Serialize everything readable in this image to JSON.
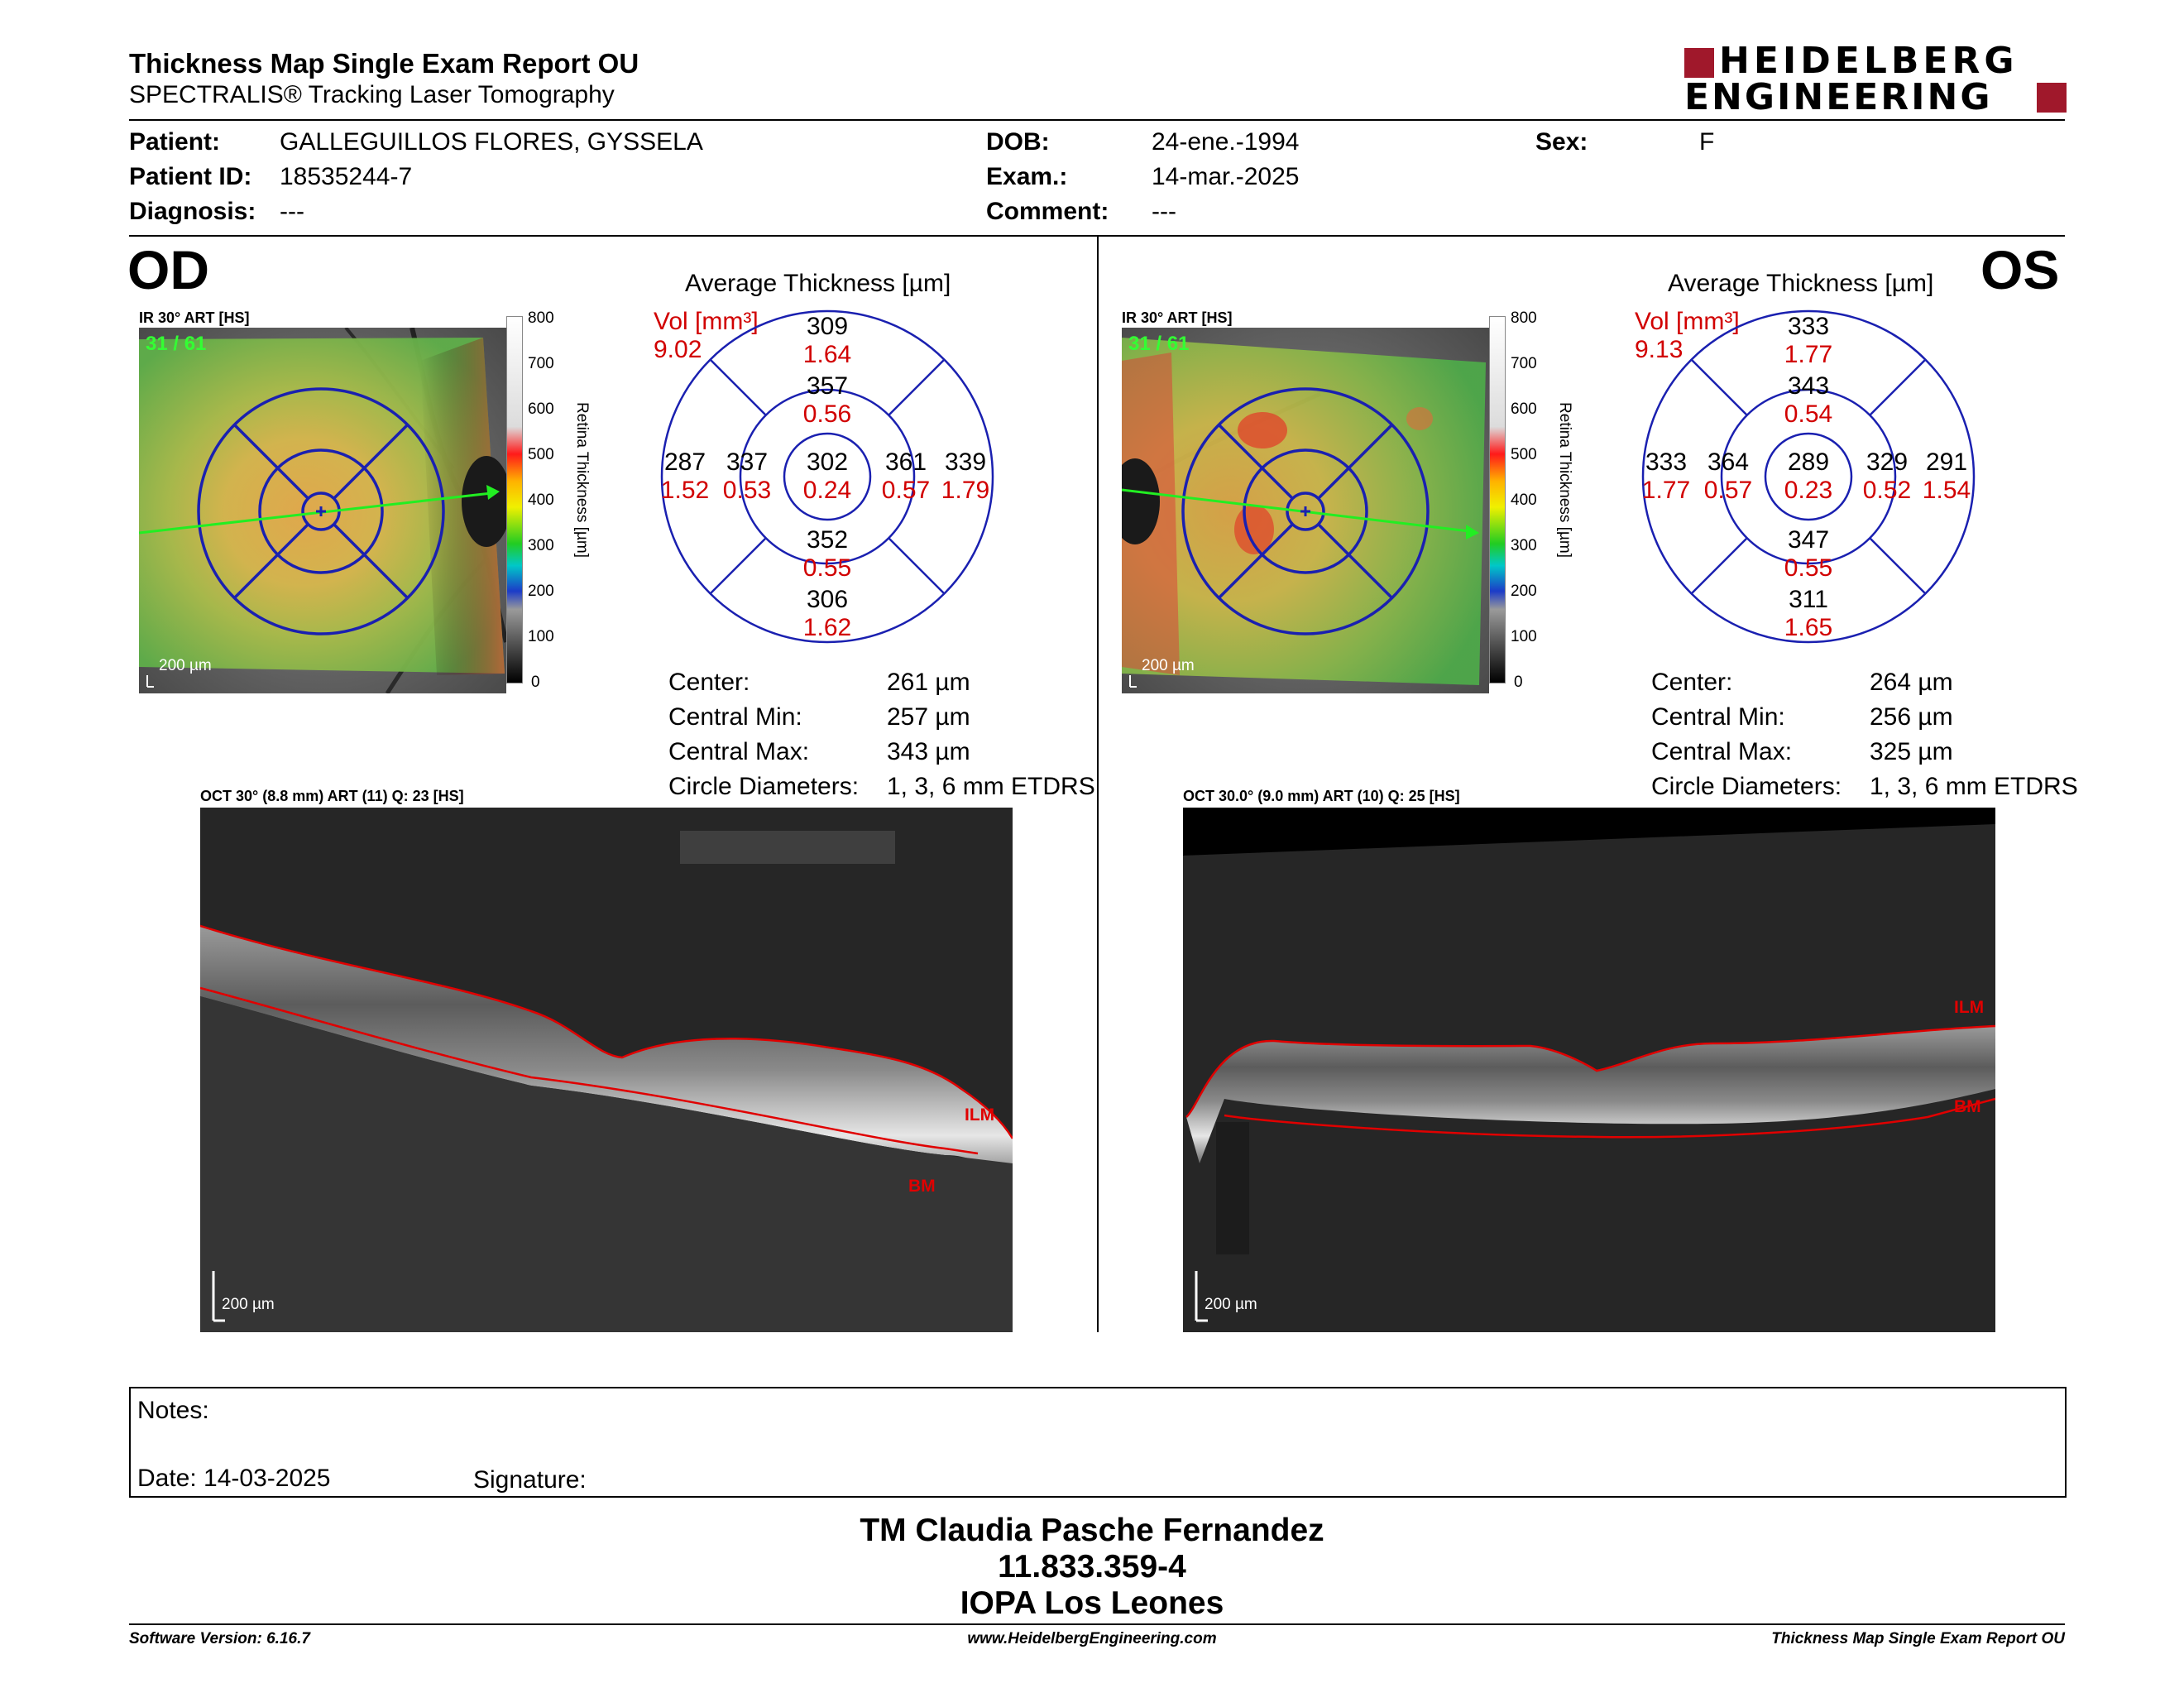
{
  "header": {
    "title": "Thickness Map Single Exam Report OU",
    "subtitle": "SPECTRALIS® Tracking Laser Tomography",
    "logo_line1": "HEIDELBERG",
    "logo_line2": "ENGINEERING",
    "logo_color": "#a0182b"
  },
  "patient": {
    "patient_label": "Patient:",
    "patient_value": "GALLEGUILLOS FLORES, GYSSELA",
    "id_label": "Patient ID:",
    "id_value": "18535244-7",
    "diagnosis_label": "Diagnosis:",
    "diagnosis_value": "---",
    "dob_label": "DOB:",
    "dob_value": "24-ene.-1994",
    "exam_label": "Exam.:",
    "exam_value": "14-mar.-2025",
    "comment_label": "Comment:",
    "comment_value": "---",
    "sex_label": "Sex:",
    "sex_value": "F"
  },
  "od": {
    "eye": "OD",
    "ir_label": "IR 30° ART [HS]",
    "frame": "31 / 61",
    "scale": "200 µm",
    "avg_title": "Average Thickness [µm]",
    "vol_label": "Vol [mm³]",
    "vol_value": "9.02",
    "etdrs": {
      "outer_sup": [
        "309",
        "1.64"
      ],
      "inner_sup": [
        "357",
        "0.56"
      ],
      "outer_nas": [
        "287",
        "1.52"
      ],
      "inner_nas": [
        "337",
        "0.53"
      ],
      "center": [
        "302",
        "0.24"
      ],
      "inner_tmp": [
        "361",
        "0.57"
      ],
      "outer_tmp": [
        "339",
        "1.79"
      ],
      "inner_inf": [
        "352",
        "0.55"
      ],
      "outer_inf": [
        "306",
        "1.62"
      ]
    },
    "stats": {
      "center_label": "Center:",
      "center_value": "261 µm",
      "min_label": "Central Min:",
      "min_value": "257 µm",
      "max_label": "Central Max:",
      "max_value": "343 µm",
      "circle_label": "Circle Diameters:",
      "circle_value": "1, 3, 6 mm ETDRS"
    },
    "oct_label": "OCT 30° (8.8 mm) ART (11) Q: 23 [HS]",
    "oct_scale": "200 µm",
    "ilm": "ILM",
    "bm": "BM"
  },
  "os": {
    "eye": "OS",
    "ir_label": "IR 30° ART [HS]",
    "frame": "31 / 61",
    "scale": "200 µm",
    "avg_title": "Average Thickness [µm]",
    "vol_label": "Vol [mm³]",
    "vol_value": "9.13",
    "etdrs": {
      "outer_sup": [
        "333",
        "1.77"
      ],
      "inner_sup": [
        "343",
        "0.54"
      ],
      "outer_nas": [
        "333",
        "1.77"
      ],
      "inner_nas": [
        "364",
        "0.57"
      ],
      "center": [
        "289",
        "0.23"
      ],
      "inner_tmp": [
        "329",
        "0.52"
      ],
      "outer_tmp": [
        "291",
        "1.54"
      ],
      "inner_inf": [
        "347",
        "0.55"
      ],
      "outer_inf": [
        "311",
        "1.65"
      ]
    },
    "stats": {
      "center_label": "Center:",
      "center_value": "264 µm",
      "min_label": "Central Min:",
      "min_value": "256 µm",
      "max_label": "Central Max:",
      "max_value": "325 µm",
      "circle_label": "Circle Diameters:",
      "circle_value": "1, 3, 6 mm ETDRS"
    },
    "oct_label": "OCT 30.0° (9.0 mm) ART (10) Q: 25 [HS]",
    "oct_scale": "200 µm",
    "ilm": "ILM",
    "bm": "BM"
  },
  "colorbar": {
    "ticks": [
      "800",
      "700",
      "600",
      "500",
      "400",
      "300",
      "200",
      "100",
      "0"
    ],
    "axis_label": "Retina  Thickness [µm]"
  },
  "notes": {
    "notes_label": "Notes:",
    "date_label": "Date: 14-03-2025",
    "signature_label": "Signature:"
  },
  "signatory": {
    "name": "TM Claudia Pasche Fernandez",
    "id": "11.833.359-4",
    "clinic": "IOPA Los Leones"
  },
  "footer": {
    "software": "Software Version: 6.16.7",
    "website": "www.HeidelbergEngineering.com",
    "report": "Thickness Map Single Exam Report OU"
  }
}
